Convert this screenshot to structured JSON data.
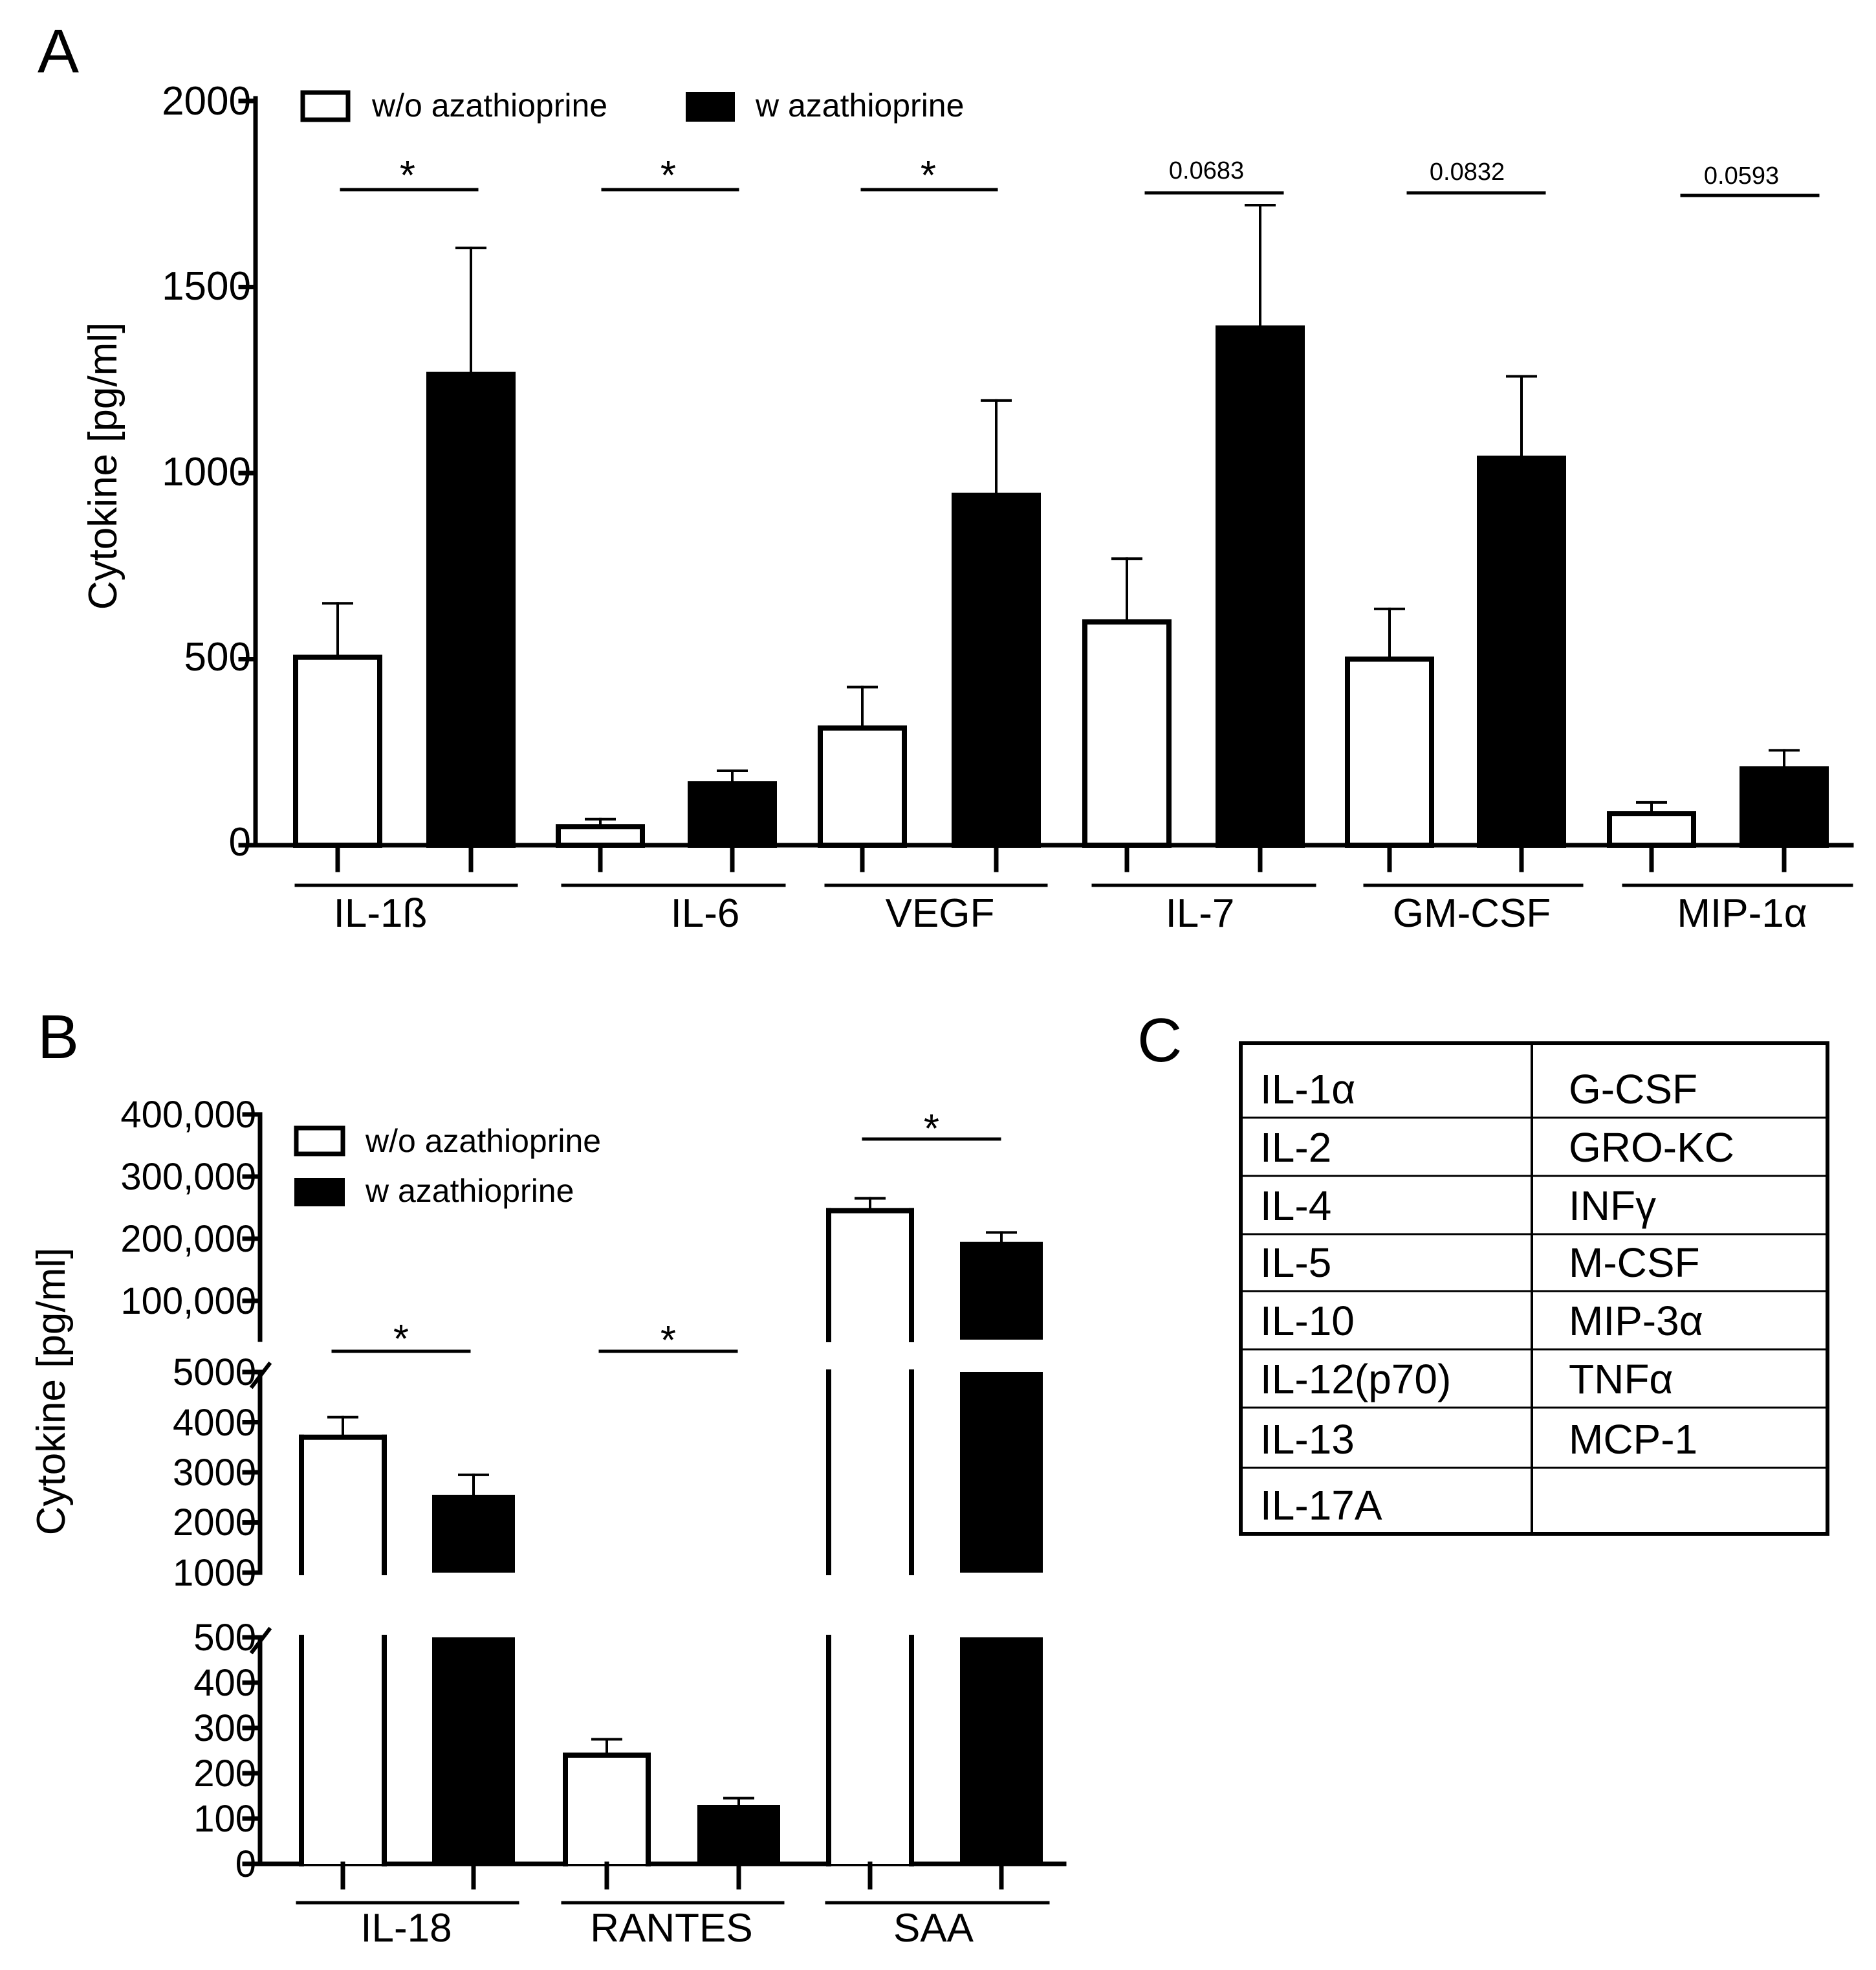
{
  "chart_data": [
    {
      "type": "bar",
      "panel_label": "A",
      "ylabel": "Cytokine [pg/ml]",
      "ylim": [
        0,
        2000
      ],
      "yticks": [
        "0",
        "500",
        "1000",
        "1500",
        "2000"
      ],
      "legend": {
        "position": "top-left",
        "entries": [
          "w/o azathioprine",
          "w azathioprine"
        ]
      },
      "categories": [
        "IL-1ß",
        "IL-6",
        "VEGF",
        "IL-7",
        "GM-CSF",
        "MIP-1α"
      ],
      "series": [
        {
          "name": "w/o azathioprine",
          "values": [
            505,
            50,
            315,
            600,
            500,
            85
          ],
          "errors": [
            145,
            20,
            110,
            170,
            135,
            30
          ]
        },
        {
          "name": "w azathioprine",
          "values": [
            1265,
            165,
            940,
            1390,
            1040,
            205
          ],
          "errors": [
            340,
            35,
            255,
            330,
            220,
            50
          ]
        }
      ],
      "significance": [
        "*",
        "*",
        "*",
        "0.0683",
        "0.0832",
        "0.0593"
      ]
    },
    {
      "type": "bar",
      "panel_label": "B",
      "ylabel": "Cytokine [pg/ml]",
      "broken_axis": true,
      "ytick_segments": [
        [
          "0",
          "100",
          "200",
          "300",
          "400",
          "500"
        ],
        [
          "1000",
          "2000",
          "3000",
          "4000",
          "5000"
        ],
        [
          "100,000",
          "200,000",
          "300,000",
          "400,000"
        ]
      ],
      "legend": {
        "position": "top-left",
        "entries": [
          "w/o azathioprine",
          "w azathioprine"
        ]
      },
      "categories": [
        "IL-18",
        "RANTES",
        "SAA"
      ],
      "series": [
        {
          "name": "w/o azathioprine",
          "values": [
            3700,
            240,
            245000
          ],
          "errors": [
            400,
            35,
            20000
          ]
        },
        {
          "name": "w azathioprine",
          "values": [
            2550,
            130,
            195000
          ],
          "errors": [
            400,
            15,
            15000
          ]
        }
      ],
      "significance": [
        "*",
        "*",
        "*"
      ]
    }
  ],
  "panel_c": {
    "label": "C",
    "rows": [
      [
        "IL-1α",
        "G-CSF"
      ],
      [
        "IL-2",
        "GRO-KC"
      ],
      [
        "IL-4",
        "INFγ"
      ],
      [
        "IL-5",
        "M-CSF"
      ],
      [
        "IL-10",
        "MIP-3α"
      ],
      [
        "IL-12(p70)",
        "TNFα"
      ],
      [
        "IL-13",
        "MCP-1"
      ],
      [
        "IL-17A",
        ""
      ]
    ]
  }
}
